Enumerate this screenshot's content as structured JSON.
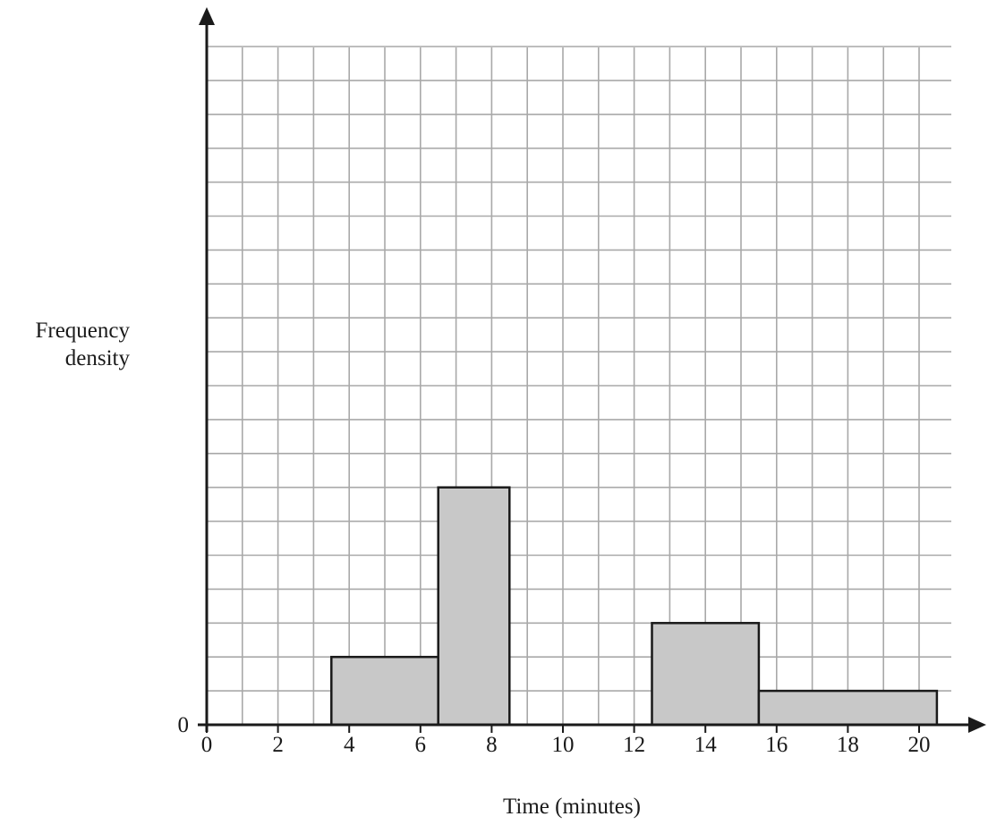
{
  "chart_data": {
    "type": "bar",
    "subtype": "histogram",
    "title": "",
    "xlabel": "Time (minutes)",
    "ylabel": [
      "Frequency",
      "density"
    ],
    "xlim": [
      0,
      21
    ],
    "x_ticks": [
      "0",
      "2",
      "4",
      "6",
      "8",
      "10",
      "12",
      "14",
      "16",
      "18",
      "20"
    ],
    "y_ticks": [
      "0"
    ],
    "grid": true,
    "bins": [
      {
        "start": 3.5,
        "end": 6.5,
        "height": 2
      },
      {
        "start": 6.5,
        "end": 8.5,
        "height": 7
      },
      {
        "start": 12.5,
        "end": 15.5,
        "height": 3
      },
      {
        "start": 15.5,
        "end": 20.5,
        "height": 1
      }
    ]
  },
  "colors": {
    "bar_fill": "#c8c8c8",
    "bar_stroke": "#1a1a1a",
    "grid": "#a9a9a9",
    "axis": "#1a1a1a"
  }
}
